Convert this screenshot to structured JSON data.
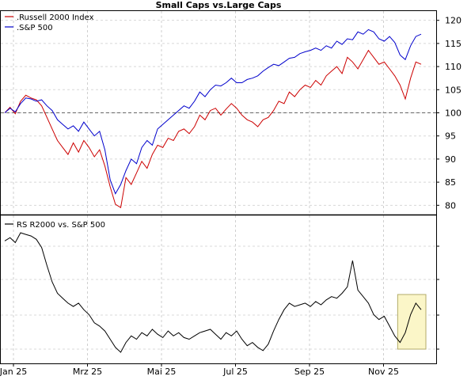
{
  "chart_data": [
    {
      "type": "line",
      "title": "Small Caps vs.Large Caps",
      "x_labels": [
        "Jan 25",
        "Mrz 25",
        "Mai 25",
        "Jul 25",
        "Sep 25",
        "Nov 25"
      ],
      "y_ticks": [
        80,
        85,
        90,
        95,
        100,
        105,
        110,
        115,
        120
      ],
      "ylim": [
        78,
        122
      ],
      "reference_line": 100,
      "grid": true,
      "legend_position": "top-left",
      "series": [
        {
          "name": ".Russell 2000 Index",
          "color": "#cc0000",
          "values": [
            100,
            101.2,
            99.8,
            102.5,
            103.8,
            103.2,
            102.8,
            101.5,
            99,
            96.5,
            94,
            92.5,
            91,
            93.5,
            91.5,
            94,
            92.5,
            90.5,
            92,
            88.5,
            84,
            80.2,
            79.5,
            86,
            84.5,
            87,
            89.5,
            88,
            91,
            93,
            92.5,
            94.5,
            94,
            96,
            96.5,
            95.5,
            97,
            99.5,
            98.5,
            100.5,
            101,
            99.5,
            100.8,
            102,
            101,
            99.5,
            98.5,
            98,
            97,
            98.5,
            99,
            100.5,
            102.5,
            102,
            104.5,
            103.5,
            105,
            106,
            105.5,
            107,
            106,
            108,
            109,
            110,
            108.5,
            112,
            111,
            109.5,
            111.5,
            113.5,
            112,
            110.5,
            111,
            109.5,
            108,
            106,
            103,
            107.5,
            111,
            110.5
          ]
        },
        {
          "name": ".S&P 500",
          "color": "#0000cc",
          "values": [
            100,
            101,
            100.2,
            102,
            103.2,
            103,
            102.5,
            102.8,
            101.5,
            100.5,
            98.5,
            97.5,
            96.5,
            97.2,
            96,
            98,
            96.5,
            95,
            96,
            92,
            85.5,
            82.5,
            84.5,
            87.5,
            90,
            89,
            92.5,
            94,
            93,
            96.5,
            97.5,
            98.5,
            99.5,
            100.5,
            101.5,
            101,
            102.5,
            104.5,
            103.5,
            105,
            106,
            105.8,
            106.5,
            107.5,
            106.5,
            106.5,
            107.2,
            107.5,
            108,
            109,
            109.8,
            110.5,
            110.2,
            111,
            111.8,
            112,
            112.8,
            113.2,
            113.5,
            114,
            113.5,
            114.5,
            114,
            115.5,
            114.8,
            116,
            115.8,
            117.5,
            117,
            118,
            117.5,
            116,
            115.5,
            116.5,
            115.2,
            112.5,
            111.5,
            114.5,
            116.5,
            117
          ]
        }
      ]
    },
    {
      "type": "line",
      "title": "",
      "x_labels": [
        "Jan 25",
        "Mrz 25",
        "Mai 25",
        "Jul 25",
        "Sep 25",
        "Nov 25"
      ],
      "grid": true,
      "legend_position": "top-left",
      "series": [
        {
          "name": "RS R2000 vs. S&P 500",
          "color": "#000000",
          "values": [
            1.0,
            1.002,
            0.999,
            1.005,
            1.004,
            1.003,
            1.001,
            0.996,
            0.985,
            0.975,
            0.968,
            0.965,
            0.962,
            0.96,
            0.962,
            0.958,
            0.955,
            0.95,
            0.948,
            0.945,
            0.94,
            0.935,
            0.932,
            0.938,
            0.942,
            0.94,
            0.944,
            0.942,
            0.946,
            0.943,
            0.941,
            0.945,
            0.942,
            0.944,
            0.941,
            0.94,
            0.942,
            0.944,
            0.945,
            0.946,
            0.943,
            0.94,
            0.944,
            0.942,
            0.945,
            0.94,
            0.936,
            0.938,
            0.935,
            0.933,
            0.937,
            0.945,
            0.952,
            0.958,
            0.962,
            0.96,
            0.961,
            0.962,
            0.96,
            0.963,
            0.961,
            0.964,
            0.966,
            0.965,
            0.968,
            0.972,
            0.988,
            0.97,
            0.966,
            0.962,
            0.955,
            0.952,
            0.954,
            0.948,
            0.942,
            0.938,
            0.944,
            0.955,
            0.962,
            0.958
          ]
        }
      ],
      "highlight": {
        "from_index": 75,
        "to_index": 79
      }
    }
  ]
}
